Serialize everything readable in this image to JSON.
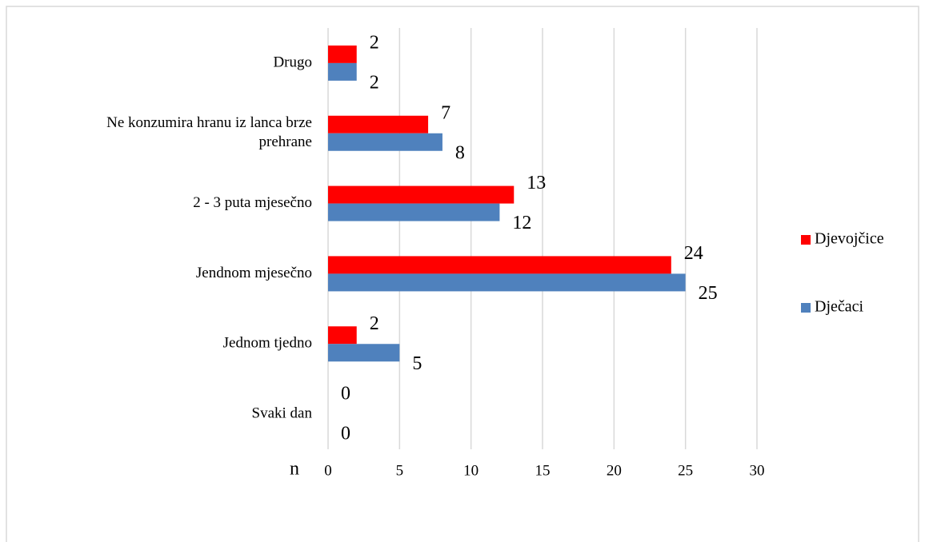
{
  "chart_data": {
    "type": "hbar",
    "categories": [
      "Drugo",
      "Ne konzumira hranu iz lanca brze prehrane",
      "2 - 3 puta mjesečno",
      "Jendnom mjesečno",
      "Jednom tjedno",
      "Svaki dan"
    ],
    "series": [
      {
        "name": "Djevojčice",
        "color": "#ff0000",
        "values": [
          2,
          7,
          13,
          24,
          2,
          0
        ]
      },
      {
        "name": "Dječaci",
        "color": "#4f81bd",
        "values": [
          2,
          8,
          12,
          25,
          5,
          0
        ]
      }
    ],
    "xlabel": "n",
    "xlim": [
      0,
      30
    ],
    "xticks": [
      0,
      5,
      10,
      15,
      20,
      25,
      30
    ],
    "grid": true,
    "legend": "right"
  }
}
